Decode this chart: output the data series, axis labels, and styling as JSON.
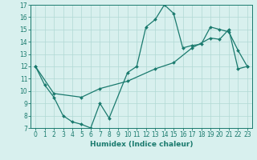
{
  "line1_x": [
    0,
    1,
    2,
    3,
    4,
    5,
    6,
    7,
    8,
    10,
    11,
    12,
    13,
    14,
    15,
    16,
    17,
    18,
    19,
    20,
    21,
    22,
    23
  ],
  "line1_y": [
    12,
    10.5,
    9.5,
    8,
    7.5,
    7.3,
    7,
    9,
    7.8,
    11.5,
    12,
    15.2,
    15.8,
    17,
    16.3,
    13.5,
    13.7,
    13.8,
    15.2,
    15,
    14.8,
    13.3,
    12
  ],
  "line2_x": [
    0,
    2,
    5,
    7,
    10,
    13,
    15,
    17,
    19,
    20,
    21,
    22,
    23
  ],
  "line2_y": [
    12,
    9.8,
    9.5,
    10.2,
    10.8,
    11.8,
    12.3,
    13.5,
    14.3,
    14.2,
    15.0,
    11.8,
    12.0
  ],
  "line_color": "#1a7a6e",
  "bg_color": "#d8f0ee",
  "grid_color": "#b0d8d4",
  "xlabel": "Humidex (Indice chaleur)",
  "xlim": [
    -0.5,
    23.5
  ],
  "ylim": [
    7,
    17
  ],
  "xticks": [
    0,
    1,
    2,
    3,
    4,
    5,
    6,
    7,
    8,
    9,
    10,
    11,
    12,
    13,
    14,
    15,
    16,
    17,
    18,
    19,
    20,
    21,
    22,
    23
  ],
  "yticks": [
    7,
    8,
    9,
    10,
    11,
    12,
    13,
    14,
    15,
    16,
    17
  ],
  "tick_fontsize": 5.5,
  "xlabel_fontsize": 6.5
}
